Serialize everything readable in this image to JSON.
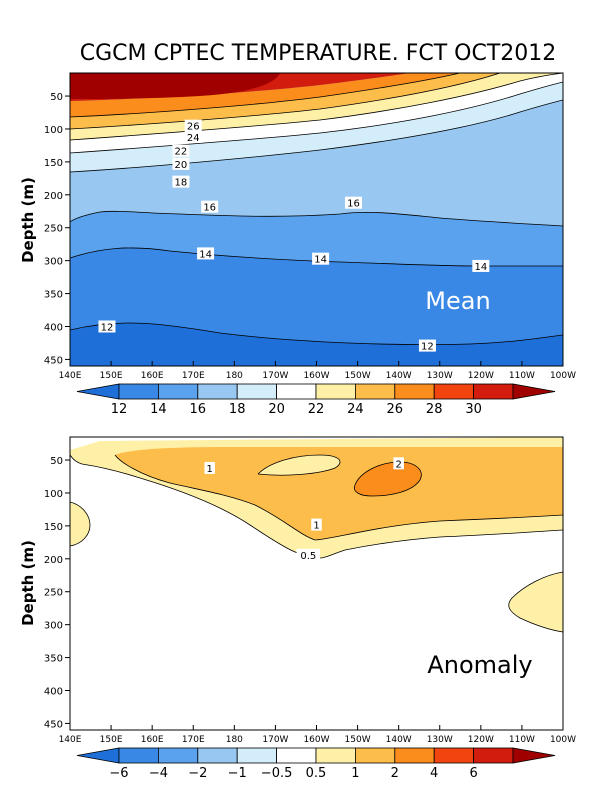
{
  "chart_data": [
    {
      "type": "contour",
      "title": "CGCM CPTEC TEMPERATURE. FCT OCT2012",
      "ylabel": "Depth (m)",
      "panel_label": "Mean",
      "panel_label_color": "#ffffff",
      "x_ticks": [
        "140E",
        "150E",
        "160E",
        "170E",
        "180",
        "170W",
        "160W",
        "150W",
        "140W",
        "130W",
        "120W",
        "110W",
        "100W"
      ],
      "y_ticks": [
        50,
        100,
        150,
        200,
        250,
        300,
        350,
        400,
        450
      ],
      "ylim": [
        460,
        15
      ],
      "colorbar": {
        "labels": [
          "12",
          "14",
          "16",
          "18",
          "20",
          "22",
          "24",
          "26",
          "28",
          "30"
        ],
        "colors": [
          "#1e6fd8",
          "#3a88e6",
          "#5aa2ee",
          "#98c8f2",
          "#d3edfa",
          "#ffffff",
          "#fff0a8",
          "#fdbd4a",
          "#fb8d1c",
          "#f1440f",
          "#d21c0d",
          "#a00000"
        ]
      },
      "contour_labels": [
        {
          "text": "26",
          "lon": 170,
          "depth": 95
        },
        {
          "text": "24",
          "lon": 170,
          "depth": 112
        },
        {
          "text": "22",
          "lon": 167,
          "depth": 133
        },
        {
          "text": "20",
          "lon": 167,
          "depth": 153
        },
        {
          "text": "18",
          "lon": 167,
          "depth": 180
        },
        {
          "text": "16",
          "lon": 174,
          "depth": 218
        },
        {
          "text": "16",
          "lon": 209,
          "depth": 212
        },
        {
          "text": "14",
          "lon": 173,
          "depth": 289
        },
        {
          "text": "14",
          "lon": 201,
          "depth": 297
        },
        {
          "text": "14",
          "lon": 240,
          "depth": 308
        },
        {
          "text": "12",
          "lon": 149,
          "depth": 400
        },
        {
          "text": "12",
          "lon": 227,
          "depth": 429
        }
      ]
    },
    {
      "type": "contour",
      "ylabel": "Depth (m)",
      "panel_label": "Anomaly",
      "panel_label_color": "#000000",
      "x_ticks": [
        "140E",
        "150E",
        "160E",
        "170E",
        "180",
        "170W",
        "160W",
        "150W",
        "140W",
        "130W",
        "120W",
        "110W",
        "100W"
      ],
      "y_ticks": [
        50,
        100,
        150,
        200,
        250,
        300,
        350,
        400,
        450
      ],
      "ylim": [
        460,
        15
      ],
      "colorbar": {
        "labels": [
          "-6",
          "-4",
          "-2",
          "-1",
          "-0.5",
          "0.5",
          "1",
          "2",
          "4",
          "6"
        ],
        "colors": [
          "#1e6fd8",
          "#3a88e6",
          "#5aa2ee",
          "#98c8f2",
          "#d3edfa",
          "#ffffff",
          "#fff0a8",
          "#fdbd4a",
          "#fb8d1c",
          "#f1440f",
          "#d21c0d",
          "#a00000"
        ]
      },
      "contour_labels": [
        {
          "text": "1",
          "lon": 174,
          "depth": 62
        },
        {
          "text": "2",
          "lon": 220,
          "depth": 55
        },
        {
          "text": "1",
          "lon": 200,
          "depth": 148
        },
        {
          "text": "0.5",
          "lon": 198,
          "depth": 194
        }
      ]
    }
  ]
}
